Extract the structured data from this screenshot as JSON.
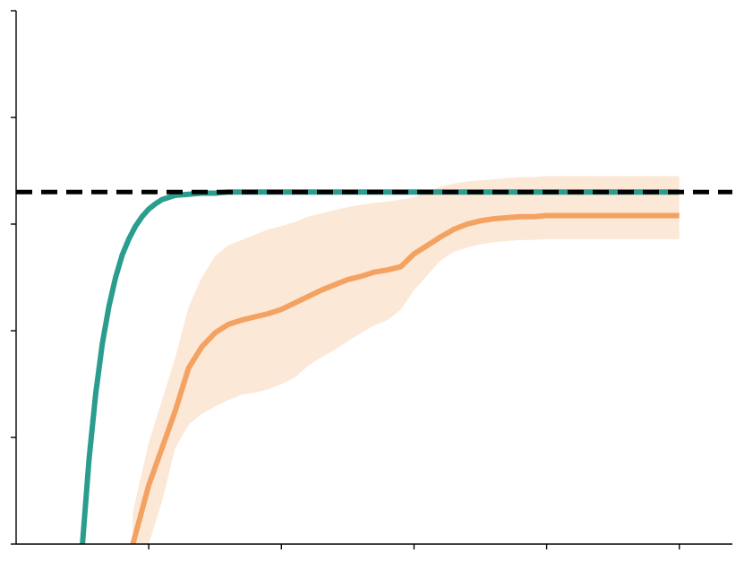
{
  "chart_data": {
    "type": "line",
    "title": "",
    "xlabel": "",
    "ylabel": "",
    "xlim": [
      -1.0,
      4.4
    ],
    "ylim": [
      0,
      5
    ],
    "x_ticks": [
      0,
      1,
      2,
      3,
      4
    ],
    "y_ticks": [
      0,
      1,
      2,
      3,
      4,
      5
    ],
    "tick_labels_shown": false,
    "grid": false,
    "legend": "none",
    "reference_line": {
      "y": 3.3,
      "style": "dashed",
      "color": "#000000"
    },
    "series": [
      {
        "color": "#2a9d8f",
        "x": [
          -0.5,
          -0.45,
          -0.4,
          -0.35,
          -0.3,
          -0.25,
          -0.2,
          -0.15,
          -0.1,
          -0.05,
          0.0,
          0.05,
          0.1,
          0.2,
          0.3,
          0.4,
          0.5,
          0.6,
          0.8,
          1.0,
          1.5,
          2.0,
          2.5,
          3.0,
          3.5,
          4.0
        ],
        "y": [
          0.0,
          0.8,
          1.41,
          1.88,
          2.23,
          2.5,
          2.71,
          2.86,
          2.98,
          3.07,
          3.14,
          3.19,
          3.23,
          3.27,
          3.28,
          3.29,
          3.29,
          3.3,
          3.3,
          3.3,
          3.3,
          3.3,
          3.3,
          3.3,
          3.3,
          3.3
        ]
      },
      {
        "color": "#f4a261",
        "x": [
          -0.12,
          0.0,
          0.1,
          0.2,
          0.3,
          0.4,
          0.5,
          0.6,
          0.7,
          0.8,
          0.9,
          1.0,
          1.1,
          1.2,
          1.3,
          1.4,
          1.5,
          1.6,
          1.7,
          1.8,
          1.9,
          2.0,
          2.1,
          2.2,
          2.3,
          2.4,
          2.5,
          2.6,
          2.7,
          2.8,
          2.9,
          3.0,
          3.2,
          3.4,
          3.6,
          3.8,
          4.0
        ],
        "y": [
          0.0,
          0.55,
          0.9,
          1.25,
          1.65,
          1.85,
          1.98,
          2.06,
          2.1,
          2.13,
          2.16,
          2.2,
          2.26,
          2.32,
          2.38,
          2.43,
          2.48,
          2.51,
          2.55,
          2.57,
          2.6,
          2.72,
          2.8,
          2.88,
          2.95,
          3.0,
          3.03,
          3.05,
          3.06,
          3.07,
          3.07,
          3.08,
          3.08,
          3.08,
          3.08,
          3.08,
          3.08
        ],
        "lower": [
          0.0,
          0.0,
          0.4,
          0.9,
          1.12,
          1.22,
          1.29,
          1.35,
          1.4,
          1.42,
          1.45,
          1.5,
          1.56,
          1.67,
          1.75,
          1.82,
          1.9,
          1.98,
          2.05,
          2.1,
          2.2,
          2.38,
          2.52,
          2.66,
          2.74,
          2.78,
          2.81,
          2.83,
          2.84,
          2.85,
          2.85,
          2.86,
          2.86,
          2.86,
          2.86,
          2.86,
          2.86
        ],
        "upper": [
          0.3,
          0.95,
          1.35,
          1.75,
          2.22,
          2.5,
          2.7,
          2.8,
          2.85,
          2.9,
          2.95,
          2.98,
          3.02,
          3.07,
          3.1,
          3.13,
          3.16,
          3.18,
          3.2,
          3.21,
          3.23,
          3.25,
          3.3,
          3.35,
          3.38,
          3.4,
          3.41,
          3.42,
          3.43,
          3.44,
          3.44,
          3.45,
          3.45,
          3.45,
          3.45,
          3.45,
          3.45
        ]
      }
    ]
  }
}
